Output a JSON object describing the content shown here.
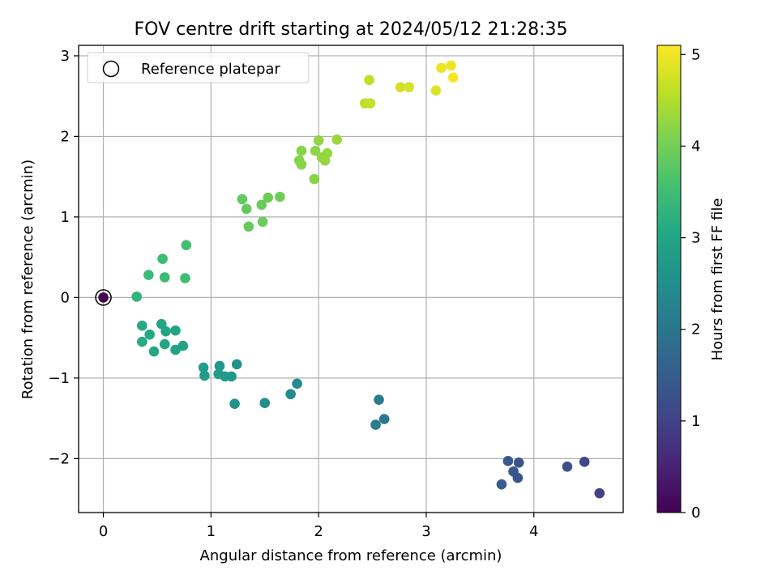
{
  "chart_data": {
    "type": "scatter",
    "title": "FOV centre drift starting at 2024/05/12 21:28:35",
    "xlabel": "Angular distance from reference (arcmin)",
    "ylabel": "Rotation from reference (arcmin)",
    "xlim": [
      -0.23,
      4.83
    ],
    "ylim": [
      -2.67,
      3.13
    ],
    "xticks": [
      0,
      1,
      2,
      3,
      4
    ],
    "yticks": [
      -2,
      -1,
      0,
      1,
      2,
      3
    ],
    "grid": true,
    "legend": {
      "position": "upper-left",
      "entries": [
        "Reference platepar"
      ]
    },
    "reference_point": {
      "x": 0,
      "y": 0
    },
    "colorbar": {
      "label": "Hours from first FF file",
      "range": [
        0,
        5.1
      ],
      "ticks": [
        0,
        1,
        2,
        3,
        4,
        5
      ],
      "colormap": "viridis"
    },
    "points": [
      {
        "x": 0.0,
        "y": 0.0,
        "c": 0.0
      },
      {
        "x": 4.61,
        "y": -2.43,
        "c": 1.0
      },
      {
        "x": 4.47,
        "y": -2.04,
        "c": 1.1
      },
      {
        "x": 4.31,
        "y": -2.1,
        "c": 1.2
      },
      {
        "x": 3.86,
        "y": -2.05,
        "c": 1.3
      },
      {
        "x": 3.85,
        "y": -2.24,
        "c": 1.35
      },
      {
        "x": 3.81,
        "y": -2.16,
        "c": 1.4
      },
      {
        "x": 3.76,
        "y": -2.03,
        "c": 1.45
      },
      {
        "x": 3.7,
        "y": -2.32,
        "c": 1.5
      },
      {
        "x": 2.61,
        "y": -1.51,
        "c": 2.05
      },
      {
        "x": 2.56,
        "y": -1.27,
        "c": 2.1
      },
      {
        "x": 2.53,
        "y": -1.58,
        "c": 2.15
      },
      {
        "x": 1.8,
        "y": -1.07,
        "c": 2.4
      },
      {
        "x": 1.74,
        "y": -1.2,
        "c": 2.45
      },
      {
        "x": 1.5,
        "y": -1.31,
        "c": 2.5
      },
      {
        "x": 1.24,
        "y": -0.83,
        "c": 2.6
      },
      {
        "x": 1.22,
        "y": -1.32,
        "c": 2.62
      },
      {
        "x": 1.19,
        "y": -0.98,
        "c": 2.65
      },
      {
        "x": 1.13,
        "y": -0.98,
        "c": 2.7
      },
      {
        "x": 1.08,
        "y": -0.85,
        "c": 2.72
      },
      {
        "x": 1.07,
        "y": -0.95,
        "c": 2.75
      },
      {
        "x": 0.94,
        "y": -0.97,
        "c": 2.78
      },
      {
        "x": 0.93,
        "y": -0.87,
        "c": 2.8
      },
      {
        "x": 0.74,
        "y": -0.6,
        "c": 2.95
      },
      {
        "x": 0.67,
        "y": -0.41,
        "c": 2.97
      },
      {
        "x": 0.67,
        "y": -0.65,
        "c": 2.98
      },
      {
        "x": 0.58,
        "y": -0.42,
        "c": 3.0
      },
      {
        "x": 0.57,
        "y": -0.58,
        "c": 3.02
      },
      {
        "x": 0.54,
        "y": -0.33,
        "c": 3.04
      },
      {
        "x": 0.47,
        "y": -0.67,
        "c": 3.06
      },
      {
        "x": 0.43,
        "y": -0.46,
        "c": 3.08
      },
      {
        "x": 0.36,
        "y": -0.35,
        "c": 3.1
      },
      {
        "x": 0.36,
        "y": -0.55,
        "c": 3.12
      },
      {
        "x": 0.31,
        "y": 0.01,
        "c": 3.3
      },
      {
        "x": 0.42,
        "y": 0.28,
        "c": 3.45
      },
      {
        "x": 0.57,
        "y": 0.25,
        "c": 3.47
      },
      {
        "x": 0.55,
        "y": 0.48,
        "c": 3.5
      },
      {
        "x": 0.76,
        "y": 0.24,
        "c": 3.52
      },
      {
        "x": 0.77,
        "y": 0.65,
        "c": 3.55
      },
      {
        "x": 1.29,
        "y": 1.22,
        "c": 3.85
      },
      {
        "x": 1.33,
        "y": 1.1,
        "c": 3.87
      },
      {
        "x": 1.35,
        "y": 0.88,
        "c": 3.9
      },
      {
        "x": 1.47,
        "y": 1.15,
        "c": 3.92
      },
      {
        "x": 1.48,
        "y": 0.94,
        "c": 3.93
      },
      {
        "x": 1.53,
        "y": 1.24,
        "c": 3.95
      },
      {
        "x": 1.64,
        "y": 1.25,
        "c": 3.97
      },
      {
        "x": 1.82,
        "y": 1.7,
        "c": 4.15
      },
      {
        "x": 1.84,
        "y": 1.82,
        "c": 4.17
      },
      {
        "x": 1.84,
        "y": 1.65,
        "c": 4.18
      },
      {
        "x": 1.96,
        "y": 1.47,
        "c": 4.2
      },
      {
        "x": 1.97,
        "y": 1.82,
        "c": 4.22
      },
      {
        "x": 2.0,
        "y": 1.95,
        "c": 4.24
      },
      {
        "x": 2.03,
        "y": 1.74,
        "c": 4.26
      },
      {
        "x": 2.06,
        "y": 1.7,
        "c": 4.28
      },
      {
        "x": 2.08,
        "y": 1.79,
        "c": 4.3
      },
      {
        "x": 2.17,
        "y": 1.96,
        "c": 4.32
      },
      {
        "x": 2.43,
        "y": 2.41,
        "c": 4.6
      },
      {
        "x": 2.47,
        "y": 2.7,
        "c": 4.62
      },
      {
        "x": 2.48,
        "y": 2.41,
        "c": 4.64
      },
      {
        "x": 2.76,
        "y": 2.61,
        "c": 4.75
      },
      {
        "x": 2.84,
        "y": 2.61,
        "c": 4.78
      },
      {
        "x": 3.09,
        "y": 2.57,
        "c": 4.85
      },
      {
        "x": 3.14,
        "y": 2.85,
        "c": 4.95
      },
      {
        "x": 3.23,
        "y": 2.88,
        "c": 5.0
      },
      {
        "x": 3.25,
        "y": 2.73,
        "c": 5.05
      }
    ]
  },
  "colors": {
    "grid": "#b0b0b0",
    "axes": "#000000",
    "reference_edge": "#000000"
  }
}
